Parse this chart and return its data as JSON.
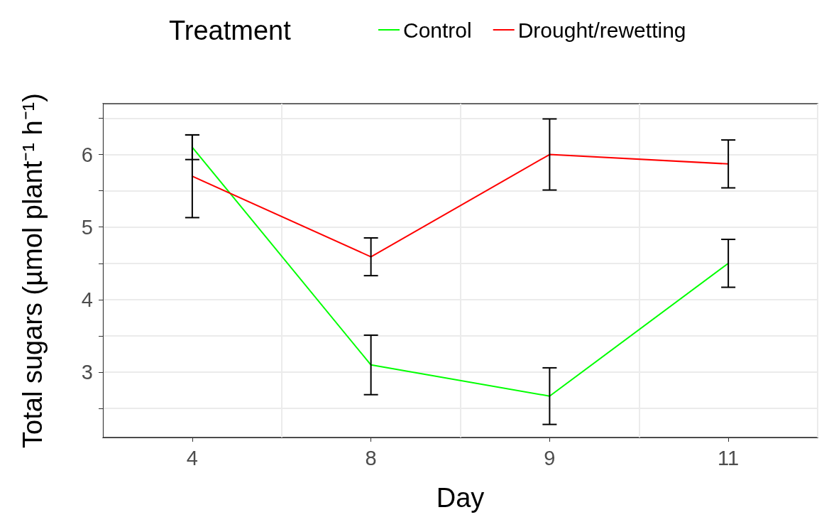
{
  "chart_data": {
    "type": "line",
    "xlabel": "Day",
    "ylabel": "Total sugars (µmol plant⁻¹ h⁻¹)",
    "legend_title": "Treatment",
    "legend": "top",
    "grid": true,
    "marker": "none",
    "line_style": "solid",
    "categories": [
      "4",
      "8",
      "9",
      "11"
    ],
    "ylim": [
      2.1,
      6.7
    ],
    "yticks": [
      {
        "value": 2.5,
        "label": null
      },
      3,
      {
        "value": 3.5,
        "label": null
      },
      4,
      {
        "value": 4.5,
        "label": null
      },
      5,
      {
        "value": 5.5,
        "label": null
      },
      6,
      {
        "value": 6.5,
        "label": null
      }
    ],
    "series": [
      {
        "name": "Control",
        "color": "#00ff00",
        "values": [
          6.1,
          3.1,
          2.67,
          4.5
        ],
        "errors": [
          0.17,
          0.41,
          0.39,
          0.33
        ]
      },
      {
        "name": "Drought/rewetting",
        "color": "#ff0000",
        "values": [
          5.7,
          4.59,
          6.0,
          5.87
        ],
        "errors": [
          0.57,
          0.26,
          0.49,
          0.33
        ]
      }
    ]
  }
}
